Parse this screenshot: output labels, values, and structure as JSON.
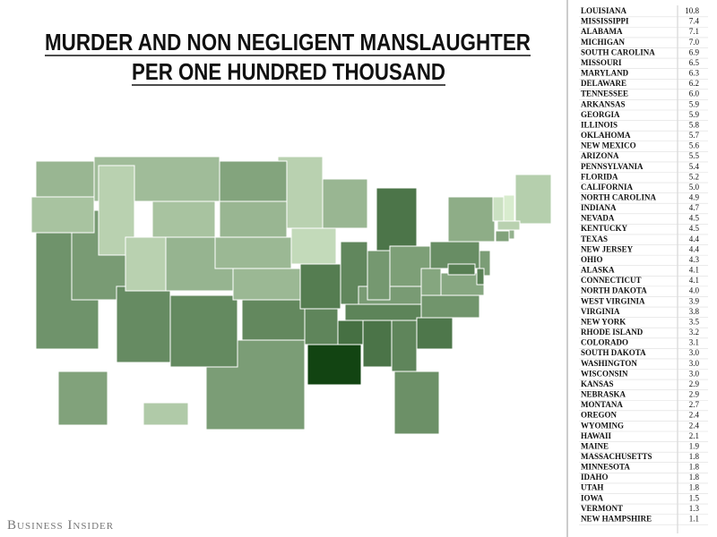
{
  "header": {
    "title_lines": [
      "MURDER AND NON NEGLIGENT MANSLAUGHTER",
      "PER ONE HUNDRED THOUSAND"
    ]
  },
  "table": {
    "rows": [
      [
        "LOUISIANA",
        10.8
      ],
      [
        "MISSISSIPPI",
        7.4
      ],
      [
        "ALABAMA",
        7.1
      ],
      [
        "MICHIGAN",
        7.0
      ],
      [
        "SOUTH CAROLINA",
        6.9
      ],
      [
        "MISSOURI",
        6.5
      ],
      [
        "MARYLAND",
        6.3
      ],
      [
        "DELAWARE",
        6.2
      ],
      [
        "TENNESSEE",
        6.0
      ],
      [
        "ARKANSAS",
        5.9
      ],
      [
        "GEORGIA",
        5.9
      ],
      [
        "ILLINOIS",
        5.8
      ],
      [
        "OKLAHOMA",
        5.7
      ],
      [
        "NEW MEXICO",
        5.6
      ],
      [
        "ARIZONA",
        5.5
      ],
      [
        "PENNSYLVANIA",
        5.4
      ],
      [
        "FLORIDA",
        5.2
      ],
      [
        "CALIFORNIA",
        5.0
      ],
      [
        "NORTH CAROLINA",
        4.9
      ],
      [
        "INDIANA",
        4.7
      ],
      [
        "NEVADA",
        4.5
      ],
      [
        "KENTUCKY",
        4.5
      ],
      [
        "TEXAS",
        4.4
      ],
      [
        "NEW JERSEY",
        4.4
      ],
      [
        "OHIO",
        4.3
      ],
      [
        "ALASKA",
        4.1
      ],
      [
        "CONNECTICUT",
        4.1
      ],
      [
        "NORTH DAKOTA",
        4.0
      ],
      [
        "WEST VIRGINIA",
        3.9
      ],
      [
        "VIRGINIA",
        3.8
      ],
      [
        "NEW YORK",
        3.5
      ],
      [
        "RHODE ISLAND",
        3.2
      ],
      [
        "COLORADO",
        3.1
      ],
      [
        "SOUTH DAKOTA",
        3.0
      ],
      [
        "WASHINGTON",
        3.0
      ],
      [
        "WISCONSIN",
        3.0
      ],
      [
        "KANSAS",
        2.9
      ],
      [
        "NEBRASKA",
        2.9
      ],
      [
        "MONTANA",
        2.7
      ],
      [
        "OREGON",
        2.4
      ],
      [
        "WYOMING",
        2.4
      ],
      [
        "HAWAII",
        2.1
      ],
      [
        "MAINE",
        1.9
      ],
      [
        "MASSACHUSETTS",
        1.8
      ],
      [
        "MINNESOTA",
        1.8
      ],
      [
        "IDAHO",
        1.8
      ],
      [
        "UTAH",
        1.8
      ],
      [
        "IOWA",
        1.5
      ],
      [
        "VERMONT",
        1.3
      ],
      [
        "NEW HAMPSHIRE",
        1.1
      ]
    ]
  },
  "footer": {
    "source": "Business Insider"
  }
}
